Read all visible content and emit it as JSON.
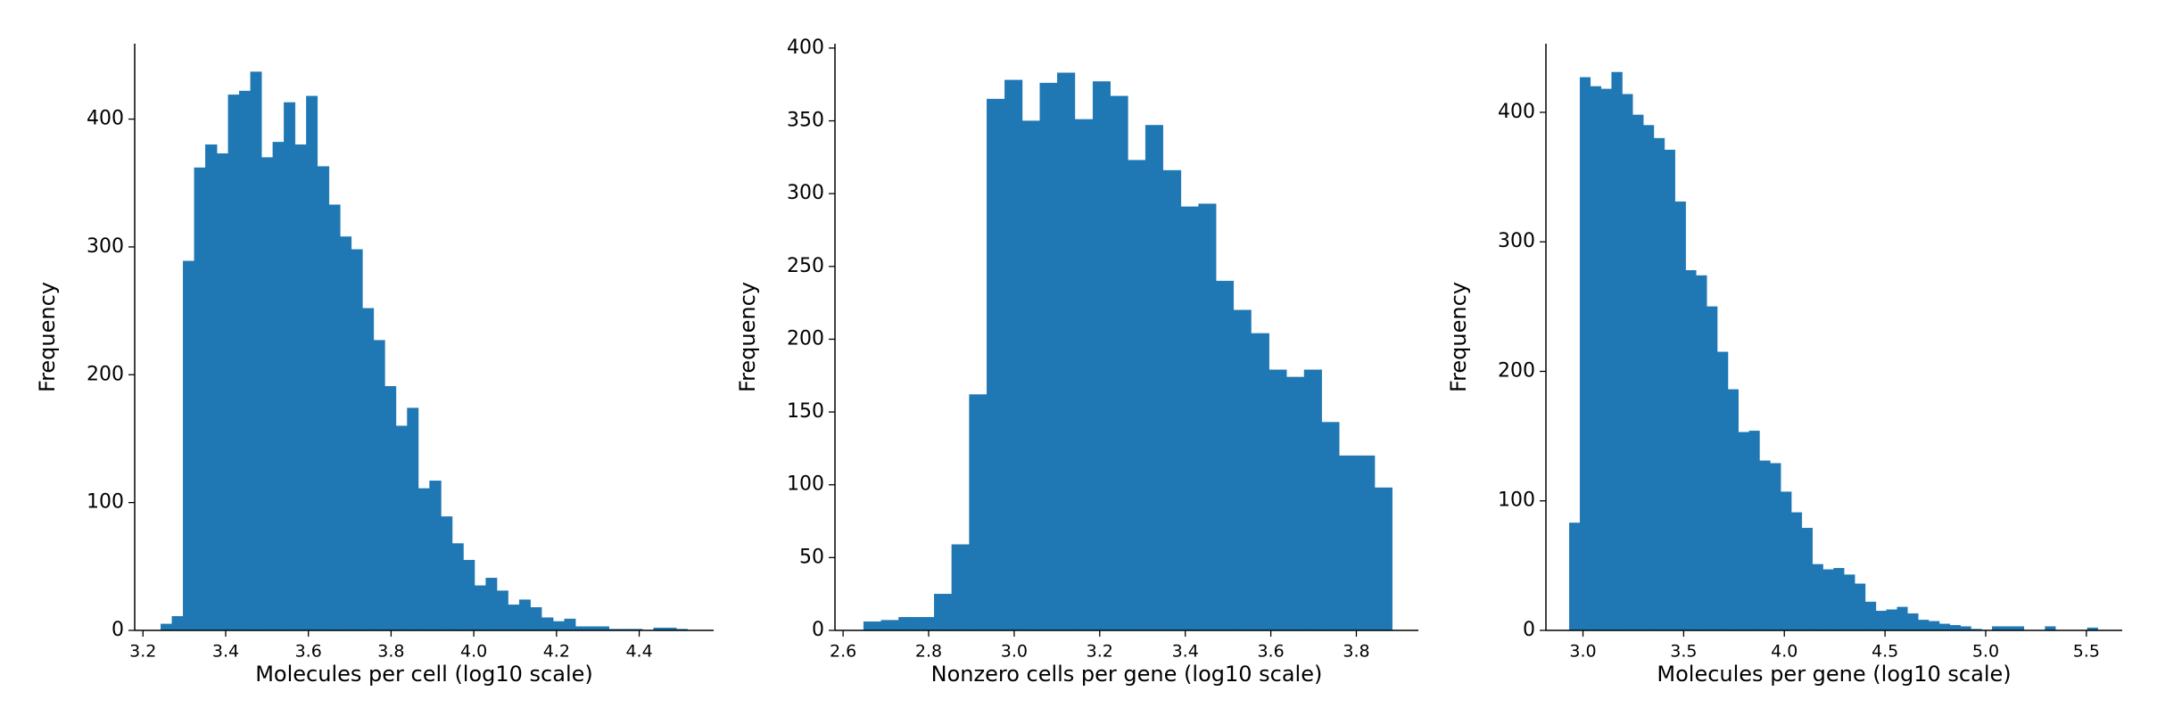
{
  "chart_data": [
    {
      "type": "histogram",
      "xlabel": "Molecules per cell (log10 scale)",
      "ylabel": "Frequency",
      "color": "#1f77b4",
      "bins": [
        3.243,
        3.27,
        3.297,
        3.324,
        3.351,
        3.379,
        3.406,
        3.433,
        3.46,
        3.487,
        3.514,
        3.541,
        3.568,
        3.595,
        3.622,
        3.65,
        3.677,
        3.704,
        3.731,
        3.758,
        3.785,
        3.812,
        3.839,
        3.866,
        3.893,
        3.921,
        3.948,
        3.975,
        4.002,
        4.029,
        4.056,
        4.083,
        4.11,
        4.137,
        4.164,
        4.192,
        4.219,
        4.246,
        4.273,
        4.3,
        4.327,
        4.354,
        4.381,
        4.408,
        4.435,
        4.463,
        4.49,
        4.517
      ],
      "values": [
        5,
        11,
        289,
        362,
        380,
        373,
        419,
        422,
        437,
        370,
        382,
        413,
        380,
        418,
        363,
        333,
        308,
        298,
        252,
        227,
        191,
        160,
        174,
        111,
        117,
        89,
        68,
        55,
        35,
        41,
        31,
        20,
        24,
        18,
        10,
        7,
        9,
        3,
        3,
        3,
        1,
        1,
        1,
        0,
        2,
        2,
        1
      ],
      "xlim": [
        3.18,
        4.58
      ],
      "ylim": [
        0,
        459
      ],
      "xticks": [
        3.2,
        3.4,
        3.6,
        3.8,
        {
          "value": 4,
          "label": "4.0"
        },
        4.2,
        4.4
      ],
      "yticks": [
        0,
        100,
        200,
        300,
        400
      ]
    },
    {
      "type": "histogram",
      "xlabel": "Nonzero cells per gene (log10 scale)",
      "ylabel": "Frequency",
      "color": "#1f77b4",
      "bins": [
        2.648,
        2.689,
        2.73,
        2.772,
        2.813,
        2.854,
        2.895,
        2.936,
        2.978,
        3.019,
        3.06,
        3.101,
        3.142,
        3.184,
        3.225,
        3.266,
        3.307,
        3.348,
        3.39,
        3.431,
        3.472,
        3.513,
        3.554,
        3.596,
        3.637,
        3.678,
        3.719,
        3.76,
        3.802,
        3.843,
        3.884
      ],
      "values": [
        6,
        7,
        9,
        9,
        25,
        59,
        162,
        365,
        378,
        350,
        376,
        383,
        351,
        377,
        367,
        323,
        347,
        316,
        291,
        293,
        240,
        220,
        204,
        179,
        174,
        179,
        143,
        120,
        120,
        98
      ],
      "xlim": [
        2.581,
        3.945
      ],
      "ylim": [
        0,
        403
      ],
      "xticks": [
        2.6,
        2.8,
        {
          "value": 3,
          "label": "3.0"
        },
        3.2,
        3.4,
        3.6,
        3.8
      ],
      "yticks": [
        0,
        50,
        100,
        150,
        200,
        250,
        300,
        350,
        400
      ]
    },
    {
      "type": "histogram",
      "xlabel": "Molecules per gene (log10 scale)",
      "ylabel": "Frequency",
      "color": "#1f77b4",
      "bins": [
        2.932,
        2.985,
        3.037,
        3.09,
        3.142,
        3.195,
        3.247,
        3.3,
        3.352,
        3.405,
        3.457,
        3.51,
        3.562,
        3.615,
        3.667,
        3.72,
        3.772,
        3.825,
        3.877,
        3.93,
        3.982,
        4.035,
        4.087,
        4.14,
        4.192,
        4.245,
        4.297,
        4.35,
        4.402,
        4.455,
        4.507,
        4.56,
        4.612,
        4.665,
        4.717,
        4.77,
        4.822,
        4.875,
        4.927,
        4.98,
        5.032,
        5.085,
        5.137,
        5.19,
        5.242,
        5.295,
        5.347,
        5.4,
        5.452,
        5.505,
        5.557
      ],
      "values": [
        83,
        427,
        420,
        418,
        431,
        414,
        398,
        390,
        380,
        371,
        331,
        278,
        274,
        250,
        215,
        186,
        153,
        154,
        131,
        129,
        107,
        91,
        79,
        51,
        47,
        48,
        43,
        36,
        22,
        15,
        16,
        18,
        13,
        8,
        7,
        5,
        4,
        3,
        1,
        0,
        3,
        3,
        3,
        0,
        0,
        3,
        0,
        0,
        0,
        2
      ],
      "xlim": [
        2.816,
        5.678
      ],
      "ylim": [
        0,
        453
      ],
      "xticks": [
        {
          "value": 3,
          "label": "3.0"
        },
        3.5,
        {
          "value": 4,
          "label": "4.0"
        },
        4.5,
        {
          "value": 5,
          "label": "5.0"
        },
        5.5
      ],
      "yticks": [
        0,
        100,
        200,
        300,
        400
      ]
    }
  ]
}
